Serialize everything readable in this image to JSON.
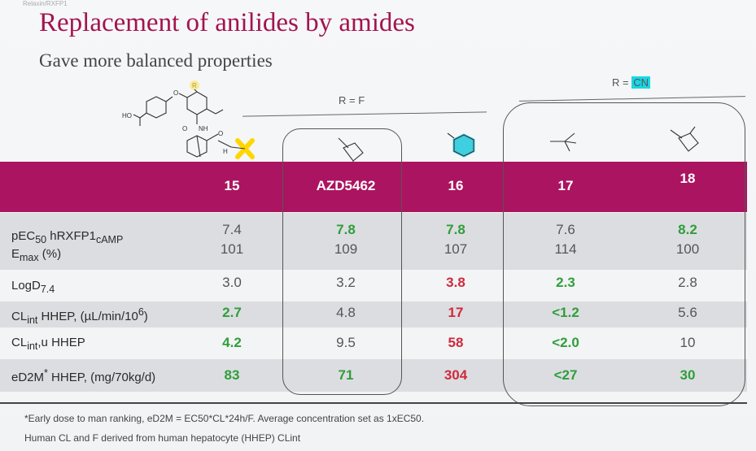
{
  "header_stub": "Relaxin/RXFP1",
  "title": "Replacement of anilides by amides",
  "subtitle": "Gave more balanced properties",
  "r_labels": {
    "f_prefix": "R = ",
    "f_value": "F",
    "cn_prefix": "R = ",
    "cn_value": "CN"
  },
  "scaffold_atoms": {
    "r": "R",
    "ho": "HO",
    "o": "O",
    "nh": "NH",
    "o2": "O",
    "h": "H"
  },
  "colors": {
    "header": "#ab1460",
    "good": "#2f9e3a",
    "bad": "#cf2a3c",
    "cn_highlight": "#18d6e3"
  },
  "columns": [
    "15",
    "AZD5462",
    "16",
    "17",
    "18"
  ],
  "rows": [
    {
      "label_html": "pEC<sub>50</sub> hRXFP1<sub>cAMP</sub>",
      "values": [
        "7.4",
        "7.8",
        "7.8",
        "7.6",
        "8.2"
      ],
      "status": [
        "n",
        "g",
        "g",
        "n",
        "g"
      ]
    },
    {
      "label_html": "E<sub>max</sub> (%)",
      "values": [
        "101",
        "109",
        "107",
        "114",
        "100"
      ],
      "status": [
        "n",
        "n",
        "n",
        "n",
        "n"
      ]
    },
    {
      "label_html": "LogD<sub>7.4</sub>",
      "values": [
        "3.0",
        "3.2",
        "3.8",
        "2.3",
        "2.8"
      ],
      "status": [
        "n",
        "n",
        "r",
        "g",
        "n"
      ]
    },
    {
      "label_html": "CL<sub>int</sub> HHEP, (µL/min/10<sup>6</sup>)",
      "values": [
        "2.7",
        "4.8",
        "17",
        "<1.2",
        "5.6"
      ],
      "status": [
        "g",
        "n",
        "r",
        "g",
        "n"
      ]
    },
    {
      "label_html": "CL<sub>int</sub>,u HHEP",
      "values": [
        "4.2",
        "9.5",
        "58",
        "<2.0",
        "10"
      ],
      "status": [
        "g",
        "n",
        "r",
        "g",
        "n"
      ]
    },
    {
      "label_html": "eD2M<sup>*</sup> HHEP, (mg/70kg/d)",
      "values": [
        "83",
        "71",
        "304",
        "<27",
        "30"
      ],
      "status": [
        "g",
        "g",
        "r",
        "g",
        "g"
      ]
    }
  ],
  "footnotes": [
    "*Early dose to man ranking, eD2M = EC50*CL*24h/F. Average concentration set as 1xEC50.",
    "Human CL and F derived from human hepatocyte (HHEP) CLint"
  ]
}
